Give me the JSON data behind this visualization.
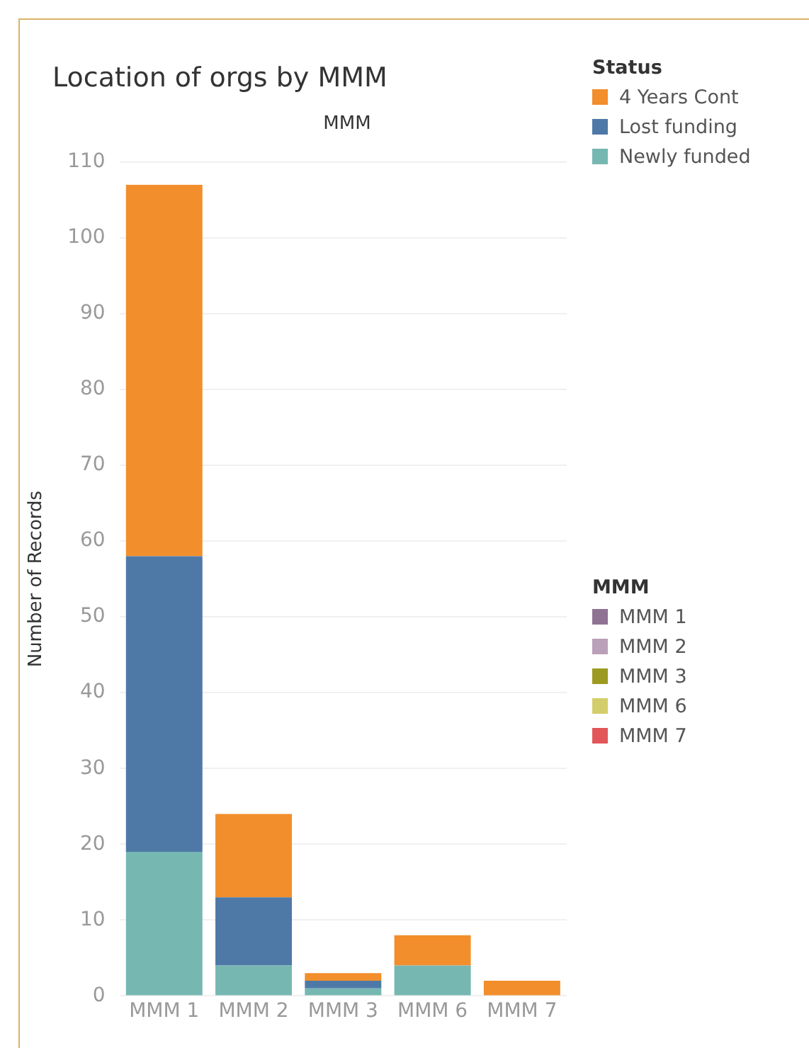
{
  "chart_data": {
    "type": "bar",
    "title": "Location of orgs by MMM",
    "subtitle": "MMM",
    "ylabel": "Number of Records",
    "legend_title": "Status",
    "annotations": [
      "MMM"
    ],
    "categories": [
      "MMM 1",
      "MMM 2",
      "MMM 3",
      "MMM 6",
      "MMM 7"
    ],
    "stacked": true,
    "grid": "y",
    "legend": "right",
    "ylim": [
      0,
      110
    ],
    "yticks": [
      0,
      10,
      20,
      30,
      40,
      50,
      60,
      70,
      80,
      90,
      100,
      110
    ],
    "series": [
      {
        "name": "Newly funded",
        "color": "#76b7b2",
        "values": [
          19,
          4,
          1,
          4,
          null
        ]
      },
      {
        "name": "Lost funding",
        "color": "#4e79a7",
        "values": [
          39,
          9,
          1,
          null,
          null
        ]
      },
      {
        "name": "4 Years Cont",
        "color": "#f28e2b",
        "values": [
          49,
          11,
          1,
          4,
          2
        ]
      },
      {
        "name": "MMM 1",
        "color": "#8f7393",
        "values": [
          null,
          null,
          null,
          null,
          null
        ]
      },
      {
        "name": "MMM 2",
        "color": "#baa0b8",
        "values": [
          null,
          null,
          null,
          null,
          null
        ]
      },
      {
        "name": "MMM 3",
        "color": "#9c9a20",
        "values": [
          null,
          null,
          null,
          null,
          null
        ]
      },
      {
        "name": "MMM 6",
        "color": "#d4cd6b",
        "values": [
          null,
          null,
          null,
          null,
          null
        ]
      },
      {
        "name": "MMM 7",
        "color": "#e15759",
        "values": [
          null,
          null,
          null,
          null,
          null
        ]
      }
    ]
  }
}
